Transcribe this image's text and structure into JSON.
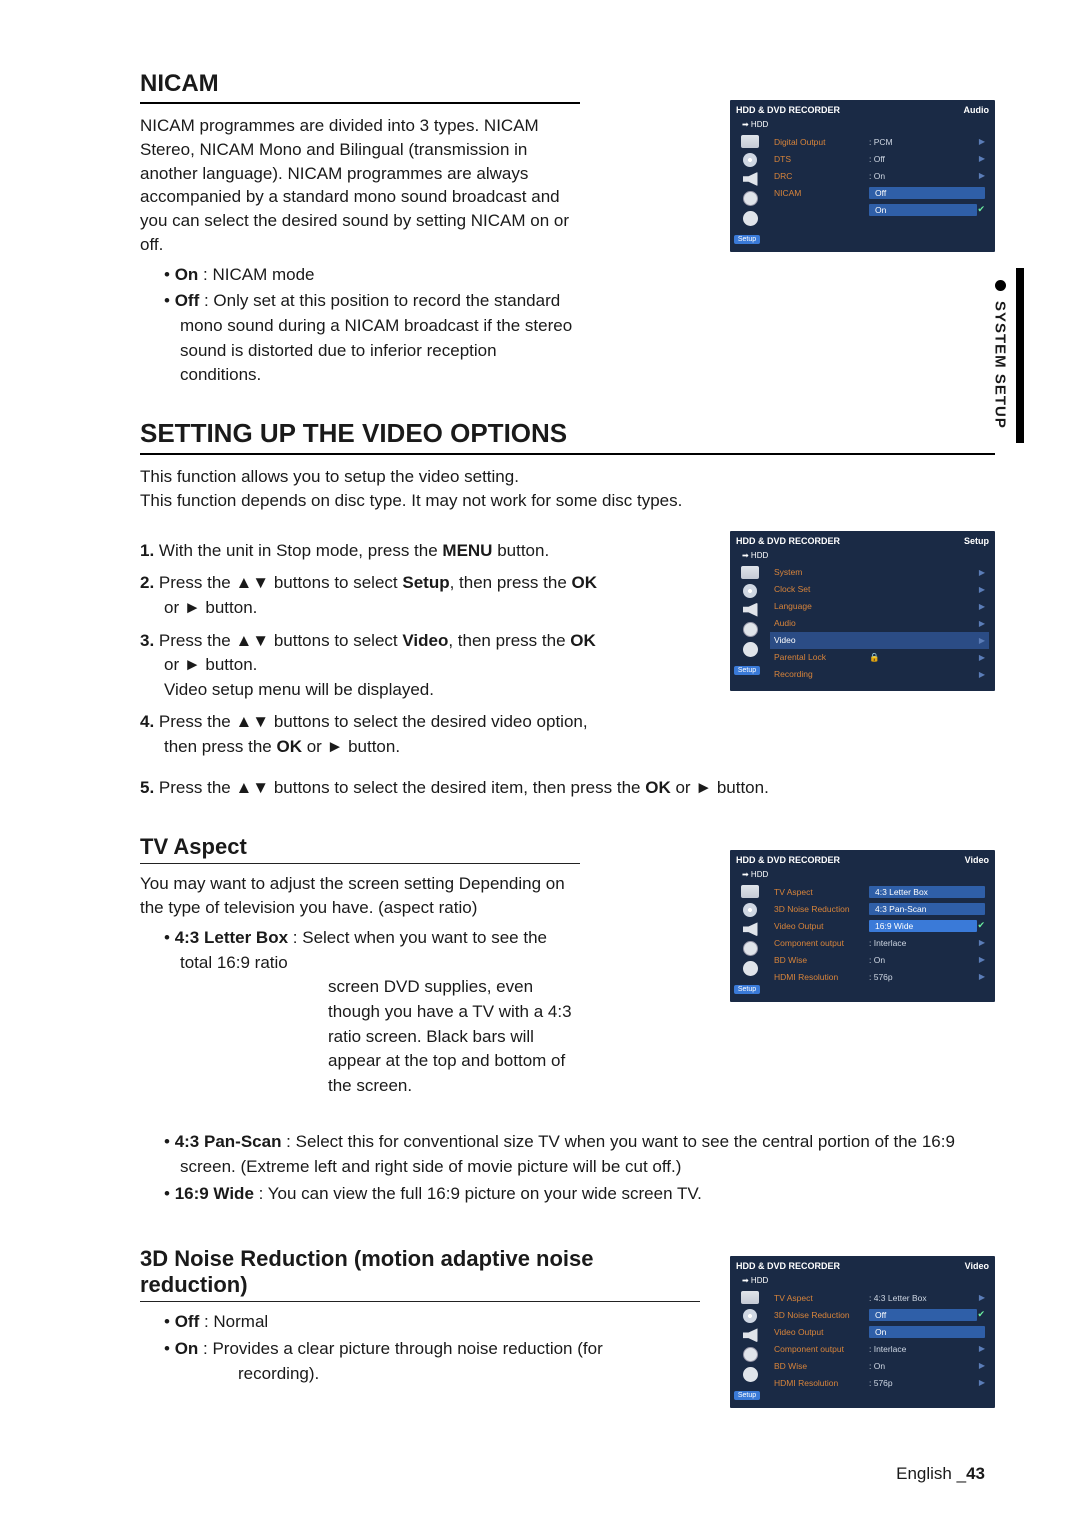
{
  "side_tab": "SYSTEM SETUP",
  "footer": {
    "lang": "English",
    "page": "43"
  },
  "nicam": {
    "title": "NICAM",
    "intro": "NICAM programmes are divided into 3 types. NICAM Stereo, NICAM Mono and Bilingual (transmission in another language). NICAM programmes are always accompanied by a standard mono sound broadcast and you can select the desired sound by setting NICAM on or off.",
    "b_on_label": "On",
    "b_on_text": " : NICAM mode",
    "b_off_label": "Off",
    "b_off_text": " : Only set at this position to record the standard mono sound during a NICAM broadcast if the stereo sound is distorted due to inferior reception conditions."
  },
  "video_options": {
    "title": "SETTING UP THE VIDEO OPTIONS",
    "intro1": "This function allows you to setup the video setting.",
    "intro2": "This function depends on disc type. It may not work for some disc types.",
    "s1a": "With the unit in Stop mode, press the ",
    "s1b": "MENU",
    "s1c": " button.",
    "s2a": "Press the ▲▼ buttons to select ",
    "s2b": "Setup",
    "s2c": ", then press the ",
    "s2d": "OK",
    "s2e": " or ► button.",
    "s3a": "Press the ▲▼ buttons to select ",
    "s3b": "Video",
    "s3c": ", then press the ",
    "s3d": "OK",
    "s3e": " or ► button.",
    "s3f": "Video setup menu will be displayed.",
    "s4a": "Press the ▲▼ buttons to select the desired video option, then press the ",
    "s4b": "OK",
    "s4c": " or ► button.",
    "s5a": "Press the ▲▼ buttons to select the desired item, then press the ",
    "s5b": "OK",
    "s5c": " or ► button."
  },
  "tv_aspect": {
    "title": "TV Aspect",
    "intro": "You may want to adjust the screen setting Depending on the type of television you have. (aspect ratio)",
    "lb_label": "4:3 Letter Box",
    "lb_text1": " : Select when you want to see the total 16:9 ratio",
    "lb_text2": "screen DVD supplies, even though you have a TV with a 4:3 ratio screen. Black bars will appear at the top and bottom of the screen.",
    "ps_label": "4:3 Pan-Scan",
    "ps_text": " : Select this for conventional size TV when you want to see the central portion of the 16:9 screen. (Extreme left and right side of movie picture will be cut off.)",
    "wide_label": "16:9 Wide",
    "wide_text": " : You can view the full 16:9 picture on your wide screen TV."
  },
  "noise": {
    "title": "3D Noise Reduction (motion adaptive noise reduction)",
    "off_label": "Off",
    "off_text": " : Normal",
    "on_label": "On",
    "on_text1": " : Provides a clear picture through noise reduction (for",
    "on_text2": "recording)."
  },
  "osd_common": {
    "header": "HDD & DVD RECORDER",
    "hdd": "➡ HDD",
    "setup_btn": "Setup"
  },
  "osd1": {
    "cat": "Audio",
    "items": [
      {
        "lbl": "Digital Output",
        "val": ": PCM",
        "arrow": true
      },
      {
        "lbl": "DTS",
        "val": ": Off",
        "arrow": true
      },
      {
        "lbl": "DRC",
        "val": ": On",
        "arrow": true
      },
      {
        "lbl": "NICAM",
        "val": "Off",
        "sel": true,
        "arrow": false
      },
      {
        "lbl": "",
        "val": "On",
        "sel": true,
        "check": true
      }
    ]
  },
  "osd2": {
    "cat": "Setup",
    "items": [
      {
        "lbl": "System",
        "arrow": true
      },
      {
        "lbl": "Clock Set",
        "arrow": true
      },
      {
        "lbl": "Language",
        "arrow": true
      },
      {
        "lbl": "Audio",
        "arrow": true
      },
      {
        "lbl": "Video",
        "arrow": true,
        "hl": true
      },
      {
        "lbl": "Parental Lock",
        "val": "🔒",
        "arrow": true
      },
      {
        "lbl": "Recording",
        "arrow": true
      }
    ]
  },
  "osd3": {
    "cat": "Video",
    "items": [
      {
        "lbl": "TV Aspect",
        "val": "4:3 Letter Box",
        "sel": true
      },
      {
        "lbl": "3D Noise Reduction",
        "val": "4:3 Pan-Scan",
        "sel": true
      },
      {
        "lbl": "Video Output",
        "val": "16:9 Wide",
        "sel": true,
        "check": true,
        "hlval": true
      },
      {
        "lbl": "Component output",
        "val": ": Interlace",
        "arrow": true
      },
      {
        "lbl": "BD Wise",
        "val": ": On",
        "arrow": true
      },
      {
        "lbl": "HDMI Resolution",
        "val": ": 576p",
        "arrow": true
      }
    ]
  },
  "osd4": {
    "cat": "Video",
    "items": [
      {
        "lbl": "TV Aspect",
        "val": ": 4:3 Letter Box",
        "arrow": true
      },
      {
        "lbl": "3D Noise Reduction",
        "val": "Off",
        "sel": true,
        "check": true
      },
      {
        "lbl": "Video Output",
        "val": "On",
        "sel": true
      },
      {
        "lbl": "Component output",
        "val": ": Interlace",
        "arrow": true
      },
      {
        "lbl": "BD Wise",
        "val": ": On",
        "arrow": true
      },
      {
        "lbl": "HDMI Resolution",
        "val": ": 576p",
        "arrow": true
      }
    ]
  }
}
